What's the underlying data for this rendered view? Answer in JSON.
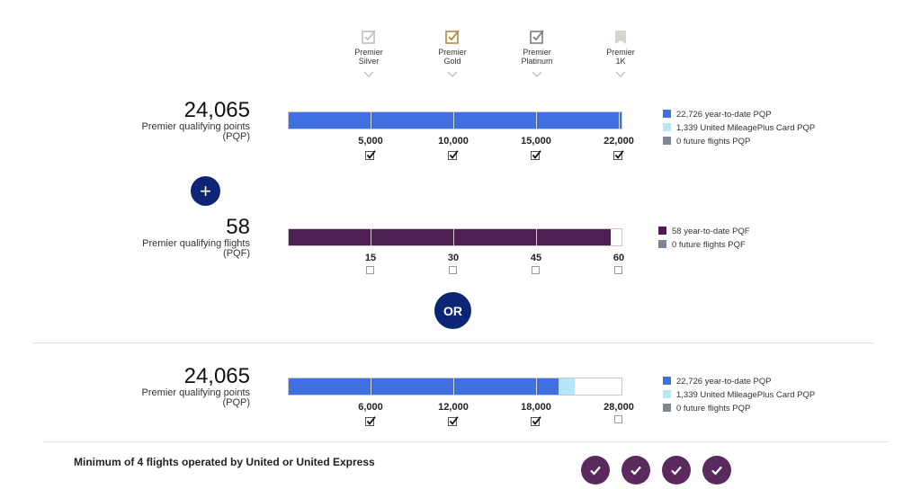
{
  "tiers": [
    {
      "line1": "Premier",
      "line2": "Silver",
      "icon": "check-box-silver-icon",
      "color": "#c0c0c0"
    },
    {
      "line1": "Premier",
      "line2": "Gold",
      "icon": "check-box-gold-icon",
      "color": "#b28a3c"
    },
    {
      "line1": "Premier",
      "line2": "Platinum",
      "icon": "check-box-platinum-icon",
      "color": "#7d7d7d"
    },
    {
      "line1": "Premier",
      "line2": "1K",
      "icon": "bookmark-1k-icon",
      "color": "#d8d4cc"
    }
  ],
  "section_pqp": {
    "value": "24,065",
    "label_line1": "Premier qualifying points",
    "label_line2": "(PQP)",
    "max": 22000,
    "fill_fraction": 1.0,
    "fill_color": "#3f6fe0",
    "ticks": [
      {
        "label": "5,000",
        "value": 5000,
        "checked": true
      },
      {
        "label": "10,000",
        "value": 10000,
        "checked": true
      },
      {
        "label": "15,000",
        "value": 15000,
        "checked": true
      },
      {
        "label": "22,000",
        "value": 22000,
        "checked": true
      }
    ],
    "legend": [
      {
        "text": "22,726 year-to-date PQP",
        "color": "#3f6fe0"
      },
      {
        "text": "1,339 United MileagePlus Card PQP",
        "color": "#b7e6f7"
      },
      {
        "text": "0 future flights PQP",
        "color": "#7c8791"
      }
    ]
  },
  "plus_symbol": "+",
  "section_pqf": {
    "value": "58",
    "label_line1": "Premier qualifying flights",
    "label_line2": "(PQF)",
    "max": 60,
    "filled_value": 58,
    "fill_color": "#4d1f52",
    "ticks": [
      {
        "label": "15",
        "value": 15,
        "checked": false
      },
      {
        "label": "30",
        "value": 30,
        "checked": false
      },
      {
        "label": "45",
        "value": 45,
        "checked": false
      },
      {
        "label": "60",
        "value": 60,
        "checked": false
      }
    ],
    "legend": [
      {
        "text": "58 year-to-date PQF",
        "color": "#4d1f52"
      },
      {
        "text": "0 future flights PQF",
        "color": "#7c8791"
      }
    ]
  },
  "or_label": "OR",
  "section_pqp2": {
    "value": "24,065",
    "label_line1": "Premier qualifying points",
    "label_line2": "(PQP)",
    "max": 28000,
    "ytd_value": 22726,
    "card_value": 1339,
    "ytd_color": "#3f6fe0",
    "card_color": "#b7e6f7",
    "ticks": [
      {
        "label": "6,000",
        "value": 6000,
        "checked": true
      },
      {
        "label": "12,000",
        "value": 12000,
        "checked": true
      },
      {
        "label": "18,000",
        "value": 18000,
        "checked": true
      },
      {
        "label": "28,000",
        "value": 28000,
        "checked": false
      }
    ],
    "legend": [
      {
        "text": "22,726 year-to-date PQP",
        "color": "#3f6fe0"
      },
      {
        "text": "1,339 United MileagePlus Card PQP",
        "color": "#b7e6f7"
      },
      {
        "text": "0 future flights PQP",
        "color": "#7c8791"
      }
    ]
  },
  "min_flights": {
    "text": "Minimum of 4 flights operated by United or United Express",
    "count": 4,
    "color": "#5a2a5f"
  }
}
